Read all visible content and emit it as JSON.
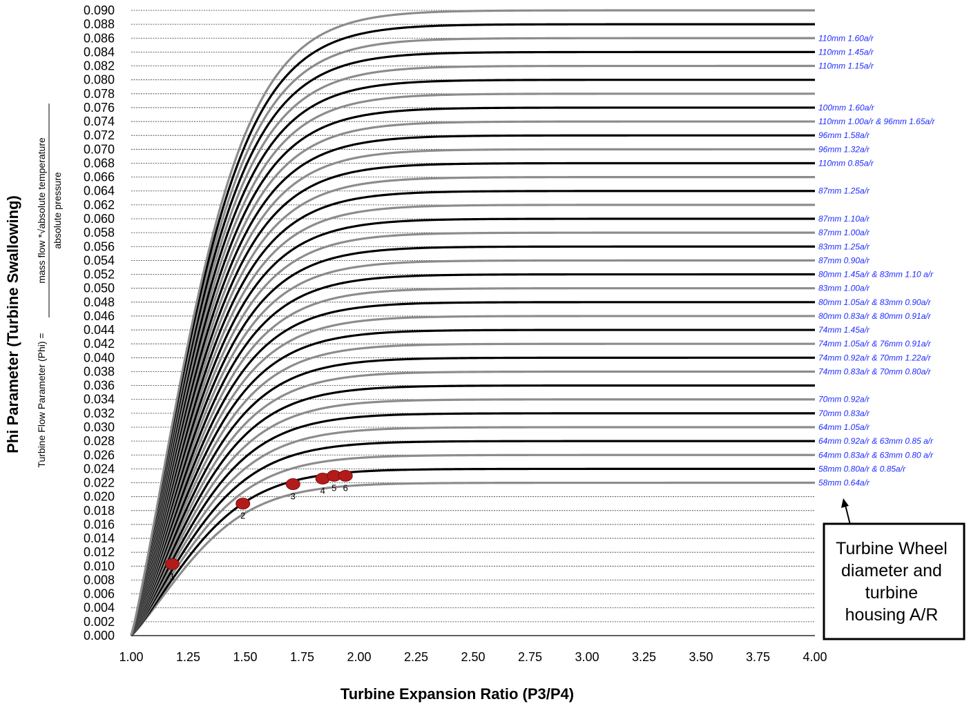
{
  "chart_data": {
    "type": "line",
    "title": "",
    "xlabel": "Turbine Expansion Ratio (P3/P4)",
    "ylabel": "Phi Parameter (Turbine Swallowing)",
    "ylabel_formula": {
      "prefix": "Turbine Flow Parameter (Phi) =",
      "numerator": "mass flow *√absolute temperature",
      "denominator": "absolute pressure"
    },
    "xlim": [
      1.0,
      4.0
    ],
    "ylim": [
      0.0,
      0.09
    ],
    "x_ticks": [
      "1.00",
      "1.25",
      "1.50",
      "1.75",
      "2.00",
      "2.25",
      "2.50",
      "2.75",
      "3.00",
      "3.25",
      "3.50",
      "3.75",
      "4.00"
    ],
    "y_ticks": [
      "0.000",
      "0.002",
      "0.004",
      "0.006",
      "0.008",
      "0.010",
      "0.012",
      "0.014",
      "0.016",
      "0.018",
      "0.020",
      "0.022",
      "0.024",
      "0.026",
      "0.028",
      "0.030",
      "0.032",
      "0.034",
      "0.036",
      "0.038",
      "0.040",
      "0.042",
      "0.044",
      "0.046",
      "0.048",
      "0.050",
      "0.052",
      "0.054",
      "0.056",
      "0.058",
      "0.060",
      "0.062",
      "0.064",
      "0.066",
      "0.068",
      "0.070",
      "0.072",
      "0.074",
      "0.076",
      "0.078",
      "0.080",
      "0.082",
      "0.084",
      "0.086",
      "0.088",
      "0.090"
    ],
    "grid": "horizontal dashed",
    "curves": [
      {
        "plateau": 0.022,
        "color": "#8c8c8c"
      },
      {
        "plateau": 0.024,
        "color": "#000000"
      },
      {
        "plateau": 0.026,
        "color": "#8c8c8c"
      },
      {
        "plateau": 0.028,
        "color": "#000000"
      },
      {
        "plateau": 0.03,
        "color": "#8c8c8c"
      },
      {
        "plateau": 0.032,
        "color": "#000000"
      },
      {
        "plateau": 0.034,
        "color": "#8c8c8c"
      },
      {
        "plateau": 0.036,
        "color": "#000000"
      },
      {
        "plateau": 0.038,
        "color": "#8c8c8c"
      },
      {
        "plateau": 0.04,
        "color": "#000000"
      },
      {
        "plateau": 0.042,
        "color": "#8c8c8c"
      },
      {
        "plateau": 0.044,
        "color": "#000000"
      },
      {
        "plateau": 0.046,
        "color": "#8c8c8c"
      },
      {
        "plateau": 0.048,
        "color": "#000000"
      },
      {
        "plateau": 0.05,
        "color": "#8c8c8c"
      },
      {
        "plateau": 0.052,
        "color": "#000000"
      },
      {
        "plateau": 0.054,
        "color": "#8c8c8c"
      },
      {
        "plateau": 0.056,
        "color": "#000000"
      },
      {
        "plateau": 0.058,
        "color": "#8c8c8c"
      },
      {
        "plateau": 0.06,
        "color": "#000000"
      },
      {
        "plateau": 0.062,
        "color": "#8c8c8c"
      },
      {
        "plateau": 0.064,
        "color": "#000000"
      },
      {
        "plateau": 0.066,
        "color": "#8c8c8c"
      },
      {
        "plateau": 0.068,
        "color": "#000000"
      },
      {
        "plateau": 0.07,
        "color": "#8c8c8c"
      },
      {
        "plateau": 0.072,
        "color": "#000000"
      },
      {
        "plateau": 0.074,
        "color": "#8c8c8c"
      },
      {
        "plateau": 0.076,
        "color": "#000000"
      },
      {
        "plateau": 0.078,
        "color": "#8c8c8c"
      },
      {
        "plateau": 0.08,
        "color": "#000000"
      },
      {
        "plateau": 0.082,
        "color": "#8c8c8c"
      },
      {
        "plateau": 0.084,
        "color": "#000000"
      },
      {
        "plateau": 0.086,
        "color": "#8c8c8c"
      },
      {
        "plateau": 0.088,
        "color": "#000000"
      },
      {
        "plateau": 0.09,
        "color": "#8c8c8c"
      }
    ],
    "curve_labels": [
      {
        "y": 0.086,
        "text": "110mm 1.60a/r"
      },
      {
        "y": 0.084,
        "text": "110mm 1.45a/r"
      },
      {
        "y": 0.082,
        "text": "110mm 1.15a/r"
      },
      {
        "y": 0.076,
        "text": "100mm 1.60a/r"
      },
      {
        "y": 0.074,
        "text": "110mm 1.00a/r & 96mm 1.65a/r"
      },
      {
        "y": 0.072,
        "text": "96mm 1.58a/r"
      },
      {
        "y": 0.07,
        "text": "96mm 1.32a/r"
      },
      {
        "y": 0.068,
        "text": "110mm 0.85a/r"
      },
      {
        "y": 0.064,
        "text": "87mm 1.25a/r"
      },
      {
        "y": 0.06,
        "text": "87mm 1.10a/r"
      },
      {
        "y": 0.058,
        "text": "87mm 1.00a/r"
      },
      {
        "y": 0.056,
        "text": "83mm 1.25a/r"
      },
      {
        "y": 0.054,
        "text": "87mm 0.90a/r"
      },
      {
        "y": 0.052,
        "text": "80mm 1.45a/r & 83mm 1.10 a/r"
      },
      {
        "y": 0.05,
        "text": "83mm 1.00a/r"
      },
      {
        "y": 0.048,
        "text": "80mm 1.05a/r & 83mm 0.90a/r"
      },
      {
        "y": 0.046,
        "text": "80mm  0.83a/r & 80mm 0.91a/r"
      },
      {
        "y": 0.044,
        "text": "74mm 1.45a/r"
      },
      {
        "y": 0.042,
        "text": "74mm  1.05a/r & 76mm 0.91a/r"
      },
      {
        "y": 0.04,
        "text": "74mm  0.92a/r & 70mm 1.22a/r"
      },
      {
        "y": 0.038,
        "text": "74mm  0.83a/r & 70mm 0.80a/r"
      },
      {
        "y": 0.034,
        "text": "70mm  0.92a/r"
      },
      {
        "y": 0.032,
        "text": "70mm  0.83a/r"
      },
      {
        "y": 0.03,
        "text": "64mm  1.05a/r"
      },
      {
        "y": 0.028,
        "text": "64mm  0.92a/r & 63mm 0.85 a/r"
      },
      {
        "y": 0.026,
        "text": "64mm  0.83a/r & 63mm 0.80 a/r"
      },
      {
        "y": 0.024,
        "text": "58mm  0.80a/r & 0.85a/r"
      },
      {
        "y": 0.022,
        "text": "58mm  0.64a/r"
      }
    ],
    "points": [
      {
        "label": "1",
        "x": 1.18,
        "y": 0.0103
      },
      {
        "label": "2",
        "x": 1.49,
        "y": 0.019
      },
      {
        "label": "3",
        "x": 1.71,
        "y": 0.0218
      },
      {
        "label": "4",
        "x": 1.84,
        "y": 0.0226
      },
      {
        "label": "5",
        "x": 1.89,
        "y": 0.023
      },
      {
        "label": "6",
        "x": 1.94,
        "y": 0.023
      }
    ],
    "point_color": "#b31b1b",
    "annotation": {
      "lines": [
        "Turbine Wheel",
        "diameter and",
        "turbine",
        "housing A/R"
      ]
    }
  }
}
